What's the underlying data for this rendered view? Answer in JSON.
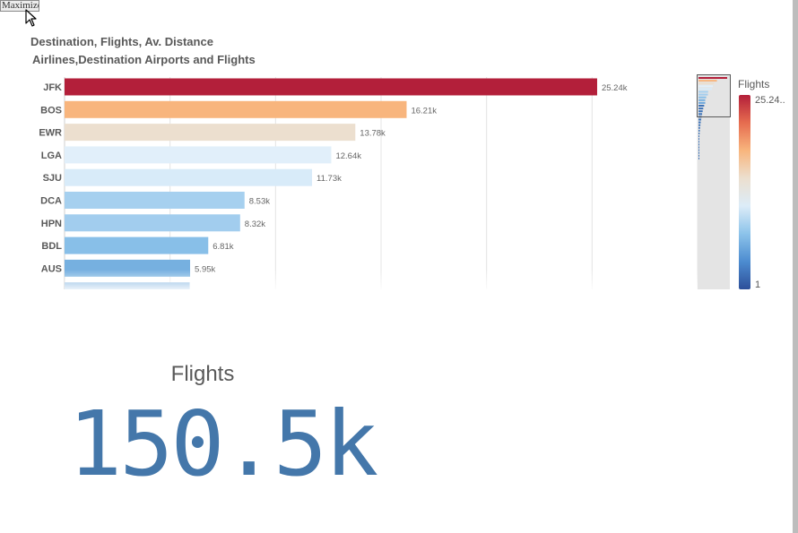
{
  "window": {
    "maximize_label": "Maximize"
  },
  "chart": {
    "title": "Destination, Flights, Av. Distance",
    "subtitle": "Airlines,Destination Airports and Flights"
  },
  "chart_data": {
    "type": "bar",
    "orientation": "horizontal",
    "categories": [
      "JFK",
      "BOS",
      "EWR",
      "LGA",
      "SJU",
      "DCA",
      "HPN",
      "BDL",
      "AUS",
      ""
    ],
    "values": [
      25240,
      16210,
      13780,
      12640,
      11730,
      8530,
      8320,
      6810,
      5950,
      5930
    ],
    "data_labels": [
      "25.24k",
      "16.21k",
      "13.78k",
      "12.64k",
      "11.73k",
      "8.53k",
      "8.32k",
      "6.81k",
      "5.95k",
      ""
    ],
    "colors": [
      "#b31f3a",
      "#f8b57d",
      "#ecdfcf",
      "#e1effa",
      "#d8ebf9",
      "#a6d0ef",
      "#a2cdee",
      "#88bfe8",
      "#76b0e0",
      "#6fa9dc"
    ],
    "xlim": [
      0,
      30000
    ],
    "grid": true,
    "minimap_values": [
      25240,
      16210,
      13780,
      12640,
      11730,
      8530,
      8320,
      6810,
      5950,
      5930,
      5000,
      4200,
      3700,
      3200,
      2800,
      2400,
      2000,
      1700,
      1400,
      1200,
      1000,
      800,
      600,
      450,
      300,
      200,
      120,
      60,
      30,
      10
    ],
    "legend": {
      "title": "Flights",
      "max_label": "25.24..",
      "min_label": "1",
      "placement": "right",
      "gradient": [
        "#b31f3a",
        "#e66c4f",
        "#f8b57d",
        "#ecdfcf",
        "#dcecf8",
        "#8cc3ea",
        "#4d8cd0",
        "#2d4f9a"
      ]
    }
  },
  "kpi": {
    "label": "Flights",
    "value": "150.5k"
  }
}
